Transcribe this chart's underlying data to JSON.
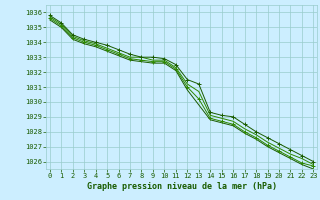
{
  "background_color": "#cceeff",
  "grid_color": "#99cccc",
  "line_color_main": "#1a5c00",
  "line_color_light": "#2d8800",
  "text_color": "#1a5c00",
  "xlabel": "Graphe pression niveau de la mer (hPa)",
  "ylim": [
    1025.5,
    1036.5
  ],
  "xlim": [
    -0.3,
    23.3
  ],
  "yticks": [
    1026,
    1027,
    1028,
    1029,
    1030,
    1031,
    1032,
    1033,
    1034,
    1035,
    1036
  ],
  "xticks": [
    0,
    1,
    2,
    3,
    4,
    5,
    6,
    7,
    8,
    9,
    10,
    11,
    12,
    13,
    14,
    15,
    16,
    17,
    18,
    19,
    20,
    21,
    22,
    23
  ],
  "series": [
    [
      1035.8,
      1035.3,
      1034.5,
      1034.2,
      1034.0,
      1033.8,
      1033.5,
      1033.2,
      1033.0,
      1033.0,
      1032.9,
      1032.5,
      1031.5,
      1031.2,
      1029.3,
      1029.1,
      1029.0,
      1028.5,
      1028.0,
      1027.6,
      1027.2,
      1026.8,
      1026.4,
      1026.0
    ],
    [
      1035.7,
      1035.2,
      1034.4,
      1034.1,
      1033.9,
      1033.6,
      1033.3,
      1033.0,
      1033.0,
      1032.8,
      1032.8,
      1032.3,
      1031.2,
      1030.7,
      1029.1,
      1028.9,
      1028.7,
      1028.2,
      1027.8,
      1027.3,
      1026.9,
      1026.5,
      1026.2,
      1025.8
    ],
    [
      1035.6,
      1035.1,
      1034.3,
      1034.0,
      1033.8,
      1033.5,
      1033.2,
      1032.9,
      1032.8,
      1032.7,
      1032.7,
      1032.2,
      1031.0,
      1030.2,
      1028.9,
      1028.7,
      1028.5,
      1028.0,
      1027.6,
      1027.1,
      1026.7,
      1026.3,
      1025.9,
      1025.7
    ],
    [
      1035.5,
      1035.0,
      1034.2,
      1033.9,
      1033.7,
      1033.4,
      1033.1,
      1032.8,
      1032.7,
      1032.6,
      1032.6,
      1032.1,
      1030.8,
      1029.8,
      1028.8,
      1028.6,
      1028.4,
      1027.9,
      1027.5,
      1027.0,
      1026.6,
      1026.2,
      1025.8,
      1025.5
    ]
  ],
  "marker_series": [
    0,
    2
  ],
  "marker_style": "+",
  "marker_size": 3,
  "linewidth": 0.7,
  "tick_fontsize": 5.0,
  "xlabel_fontsize": 6.0
}
